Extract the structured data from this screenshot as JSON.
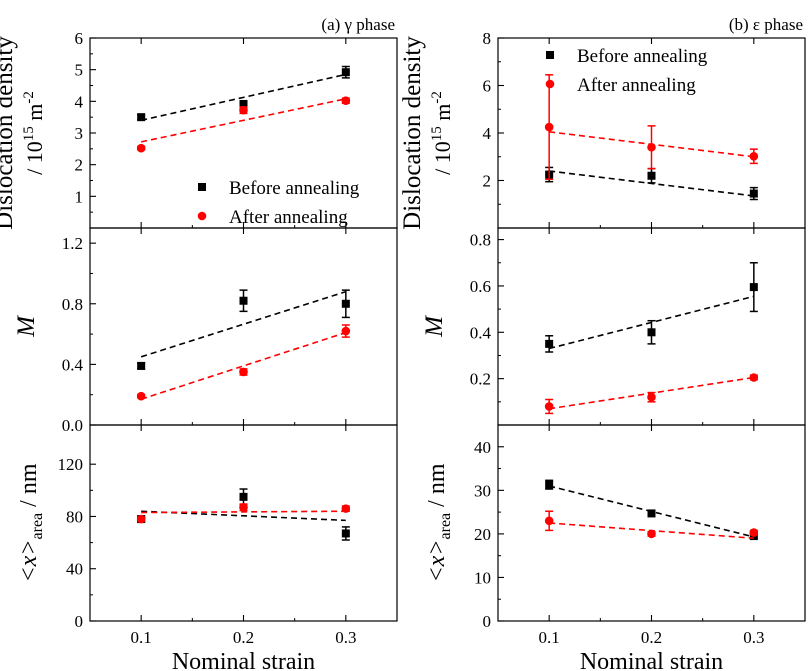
{
  "chart_data": [
    {
      "type": "scatter",
      "column": 0,
      "row": 0,
      "title": "(a) γ phase",
      "ylabel": "Dislocation density",
      "ylabel2_prefix": "/ 10",
      "ylabel2_exp": "15",
      "ylabel2_unit": " m",
      "ylabel2_unit_exp": "-2",
      "xlim": [
        0.05,
        0.35
      ],
      "ylim": [
        0,
        6
      ],
      "yticks": [
        1,
        2,
        3,
        4,
        5,
        6
      ],
      "ytick_labels": [
        "1",
        "2",
        "3",
        "4",
        "5",
        "6"
      ],
      "legend": "lower-right",
      "series": [
        {
          "name": "Before annealing",
          "color": "#000000",
          "marker": "square",
          "x": [
            0.1,
            0.2,
            0.3
          ],
          "y": [
            3.5,
            3.9,
            4.92
          ],
          "err": [
            0.08,
            0.12,
            0.18
          ],
          "fit": {
            "x": [
              0.1,
              0.3
            ],
            "y": [
              3.4,
              4.85
            ]
          }
        },
        {
          "name": "After annealing",
          "color": "#ff0000",
          "marker": "circle",
          "x": [
            0.1,
            0.2,
            0.3
          ],
          "y": [
            2.52,
            3.72,
            4.02
          ],
          "err": [
            0.05,
            0.1,
            0.08
          ],
          "fit": {
            "x": [
              0.1,
              0.3
            ],
            "y": [
              2.72,
              4.08
            ]
          }
        }
      ]
    },
    {
      "type": "scatter",
      "column": 0,
      "row": 1,
      "ylabel": "M",
      "xlim": [
        0.05,
        0.35
      ],
      "ylim": [
        0,
        1.3
      ],
      "yticks": [
        0,
        0.4,
        0.8,
        1.2
      ],
      "ytick_labels": [
        "0.0",
        "0.4",
        "0.8",
        "1.2"
      ],
      "series": [
        {
          "color": "#000000",
          "marker": "square",
          "x": [
            0.1,
            0.2,
            0.3
          ],
          "y": [
            0.39,
            0.82,
            0.8
          ],
          "err": [
            0.02,
            0.07,
            0.09
          ],
          "fit": {
            "x": [
              0.1,
              0.3
            ],
            "y": [
              0.45,
              0.88
            ]
          }
        },
        {
          "color": "#ff0000",
          "marker": "circle",
          "x": [
            0.1,
            0.2,
            0.3
          ],
          "y": [
            0.19,
            0.35,
            0.62
          ],
          "err": [
            0.01,
            0.02,
            0.04
          ],
          "fit": {
            "x": [
              0.1,
              0.3
            ],
            "y": [
              0.17,
              0.61
            ]
          }
        }
      ]
    },
    {
      "type": "scatter",
      "column": 0,
      "row": 2,
      "ylabel_pre": "<x>",
      "ylabel_sub": "area",
      "ylabel_post": " / nm",
      "xlim": [
        0.05,
        0.35
      ],
      "ylim": [
        0,
        150
      ],
      "yticks": [
        0,
        40,
        80,
        120
      ],
      "ytick_labels": [
        "0",
        "40",
        "80",
        "120"
      ],
      "xticks": [
        0.1,
        0.2,
        0.3
      ],
      "xtick_labels": [
        "0.1",
        "0.2",
        "0.3"
      ],
      "xlabel": "Nominal strain",
      "series": [
        {
          "color": "#000000",
          "marker": "square",
          "x": [
            0.1,
            0.2,
            0.3
          ],
          "y": [
            78,
            95,
            67
          ],
          "err": [
            2,
            6,
            5
          ],
          "fit": {
            "x": [
              0.1,
              0.3
            ],
            "y": [
              84,
              77
            ]
          }
        },
        {
          "color": "#ff0000",
          "marker": "circle",
          "x": [
            0.1,
            0.2,
            0.3
          ],
          "y": [
            78,
            87,
            86
          ],
          "err": [
            1.5,
            2.5,
            2
          ],
          "fit": {
            "x": [
              0.1,
              0.3
            ],
            "y": [
              83,
              84
            ]
          }
        }
      ]
    },
    {
      "type": "scatter",
      "column": 1,
      "row": 0,
      "title": "(b) ε phase",
      "ylabel": "Dislocation density",
      "ylabel2_prefix": "/ 10",
      "ylabel2_exp": "15",
      "ylabel2_unit": " m",
      "ylabel2_unit_exp": "-2",
      "xlim": [
        0.05,
        0.35
      ],
      "ylim": [
        0,
        8
      ],
      "yticks": [
        2,
        4,
        6,
        8
      ],
      "ytick_labels": [
        "2",
        "4",
        "6",
        "8"
      ],
      "legend": "top-right",
      "series": [
        {
          "name": "Before annealing",
          "color": "#000000",
          "marker": "square",
          "x": [
            0.1,
            0.2,
            0.3
          ],
          "y": [
            2.25,
            2.2,
            1.45
          ],
          "err": [
            0.3,
            0.3,
            0.25
          ],
          "fit": {
            "x": [
              0.1,
              0.3
            ],
            "y": [
              2.4,
              1.35
            ]
          }
        },
        {
          "name": "After annealing",
          "color": "#ff0000",
          "marker": "circle",
          "x": [
            0.1,
            0.2,
            0.3
          ],
          "y": [
            4.25,
            3.4,
            3.02
          ],
          "err": [
            2.2,
            0.9,
            0.3
          ],
          "fit": {
            "x": [
              0.1,
              0.3
            ],
            "y": [
              4.05,
              3.0
            ]
          }
        }
      ]
    },
    {
      "type": "scatter",
      "column": 1,
      "row": 1,
      "ylabel": "M",
      "xlim": [
        0.05,
        0.35
      ],
      "ylim": [
        0,
        0.85
      ],
      "yticks": [
        0.2,
        0.4,
        0.6,
        0.8
      ],
      "ytick_labels": [
        "0.2",
        "0.4",
        "0.6",
        "0.8"
      ],
      "series": [
        {
          "color": "#000000",
          "marker": "square",
          "x": [
            0.1,
            0.2,
            0.3
          ],
          "y": [
            0.35,
            0.4,
            0.595
          ],
          "err": [
            0.035,
            0.05,
            0.105
          ],
          "fit": {
            "x": [
              0.1,
              0.3
            ],
            "y": [
              0.33,
              0.555
            ]
          }
        },
        {
          "color": "#ff0000",
          "marker": "circle",
          "x": [
            0.1,
            0.2,
            0.3
          ],
          "y": [
            0.08,
            0.12,
            0.205
          ],
          "err": [
            0.03,
            0.02,
            0.01
          ],
          "fit": {
            "x": [
              0.1,
              0.3
            ],
            "y": [
              0.07,
              0.205
            ]
          }
        }
      ]
    },
    {
      "type": "scatter",
      "column": 1,
      "row": 2,
      "ylabel_pre": "<x>",
      "ylabel_sub": "area",
      "ylabel_post": " / nm",
      "xlim": [
        0.05,
        0.35
      ],
      "ylim": [
        0,
        45
      ],
      "yticks": [
        0,
        10,
        20,
        30,
        40
      ],
      "ytick_labels": [
        "0",
        "10",
        "20",
        "30",
        "40"
      ],
      "xticks": [
        0.1,
        0.2,
        0.3
      ],
      "xtick_labels": [
        "0.1",
        "0.2",
        "0.3"
      ],
      "xlabel": "Nominal strain",
      "series": [
        {
          "color": "#000000",
          "marker": "square",
          "x": [
            0.1,
            0.2,
            0.3
          ],
          "y": [
            31.3,
            24.7,
            19.5
          ],
          "err": [
            1,
            0.5,
            0.5
          ],
          "fit": {
            "x": [
              0.1,
              0.3
            ],
            "y": [
              31.0,
              19.3
            ]
          }
        },
        {
          "color": "#ff0000",
          "marker": "circle",
          "x": [
            0.1,
            0.2,
            0.3
          ],
          "y": [
            23.0,
            20.0,
            20.3
          ],
          "err": [
            2.2,
            0.5,
            0.5
          ],
          "fit": {
            "x": [
              0.1,
              0.3
            ],
            "y": [
              22.5,
              19.0
            ]
          }
        }
      ]
    }
  ]
}
